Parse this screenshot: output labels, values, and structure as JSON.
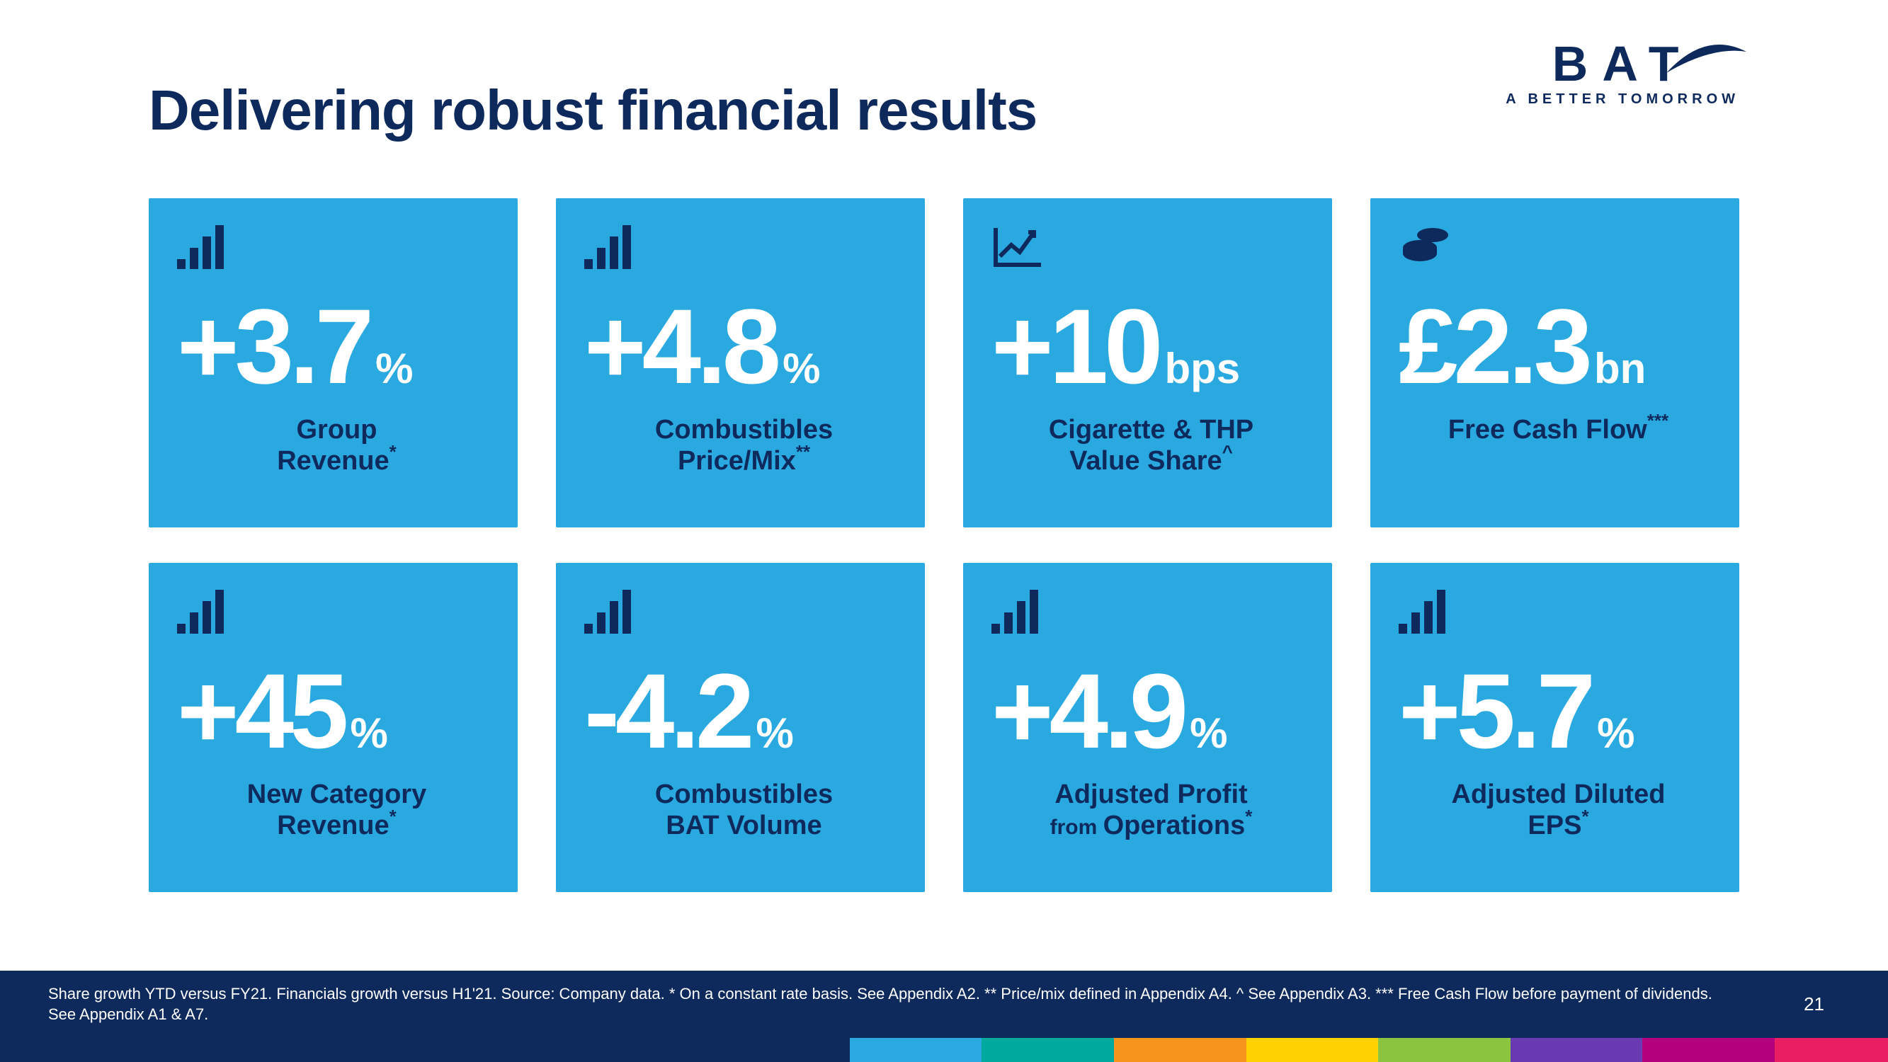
{
  "colors": {
    "brand_navy": "#0e2a5c",
    "card_bg": "#2aa9e1",
    "white": "#ffffff"
  },
  "title": "Delivering robust financial results",
  "logo": {
    "text": "BAT",
    "tagline": "A BETTER TOMORROW"
  },
  "cards": [
    {
      "icon": "bars",
      "prefix": "+",
      "value": "3.7",
      "unit": "%",
      "label_line1": "Group",
      "label_line2": "Revenue",
      "sup": "*"
    },
    {
      "icon": "bars",
      "prefix": "+",
      "value": "4.8",
      "unit": "%",
      "label_line1": "Combustibles",
      "label_line2": "Price/Mix",
      "sup": "**"
    },
    {
      "icon": "graph",
      "prefix": "+",
      "value": "10",
      "unit": "bps",
      "label_line1": "Cigarette & THP",
      "label_line2": "Value Share",
      "sup": "^"
    },
    {
      "icon": "coins",
      "prefix": "£",
      "value": "2.3",
      "unit": "bn",
      "label_line1": "Free Cash Flow",
      "label_line2": "",
      "sup": "***"
    },
    {
      "icon": "bars",
      "prefix": "+",
      "value": "45",
      "unit": "%",
      "label_line1": "New Category",
      "label_line2": "Revenue",
      "sup": "*"
    },
    {
      "icon": "bars",
      "prefix": "-",
      "value": "4.2",
      "unit": "%",
      "label_line1": "Combustibles",
      "label_line2": "BAT Volume",
      "sup": ""
    },
    {
      "icon": "bars",
      "prefix": "+",
      "value": "4.9",
      "unit": "%",
      "label_line1": "Adjusted Profit",
      "label_line2_small": "from ",
      "label_line2": "Operations",
      "sup": "*"
    },
    {
      "icon": "bars",
      "prefix": "+",
      "value": "5.7",
      "unit": "%",
      "label_line1": "Adjusted Diluted",
      "label_line2": "EPS",
      "sup": "*"
    }
  ],
  "footer": "Share growth YTD versus FY21. Financials growth versus H1'21. Source: Company data. * On a constant rate basis. See Appendix A2. ** Price/mix defined in Appendix A4. ^ See Appendix A3. *** Free Cash Flow before payment of dividends. See Appendix A1 & A7.",
  "page_number": "21",
  "stripe_colors": [
    "#0e2a5c",
    "#0e2a5c",
    "#0e2a5c",
    "#2aa9e1",
    "#00a99d",
    "#f7941d",
    "#ffd200",
    "#8bc53f",
    "#6a3ab2",
    "#b5007d",
    "#e91e63"
  ],
  "stripe_widths": [
    "31%",
    "7%",
    "7%",
    "7%",
    "7%",
    "7%",
    "7%",
    "7%",
    "7%",
    "7%",
    "6%"
  ]
}
